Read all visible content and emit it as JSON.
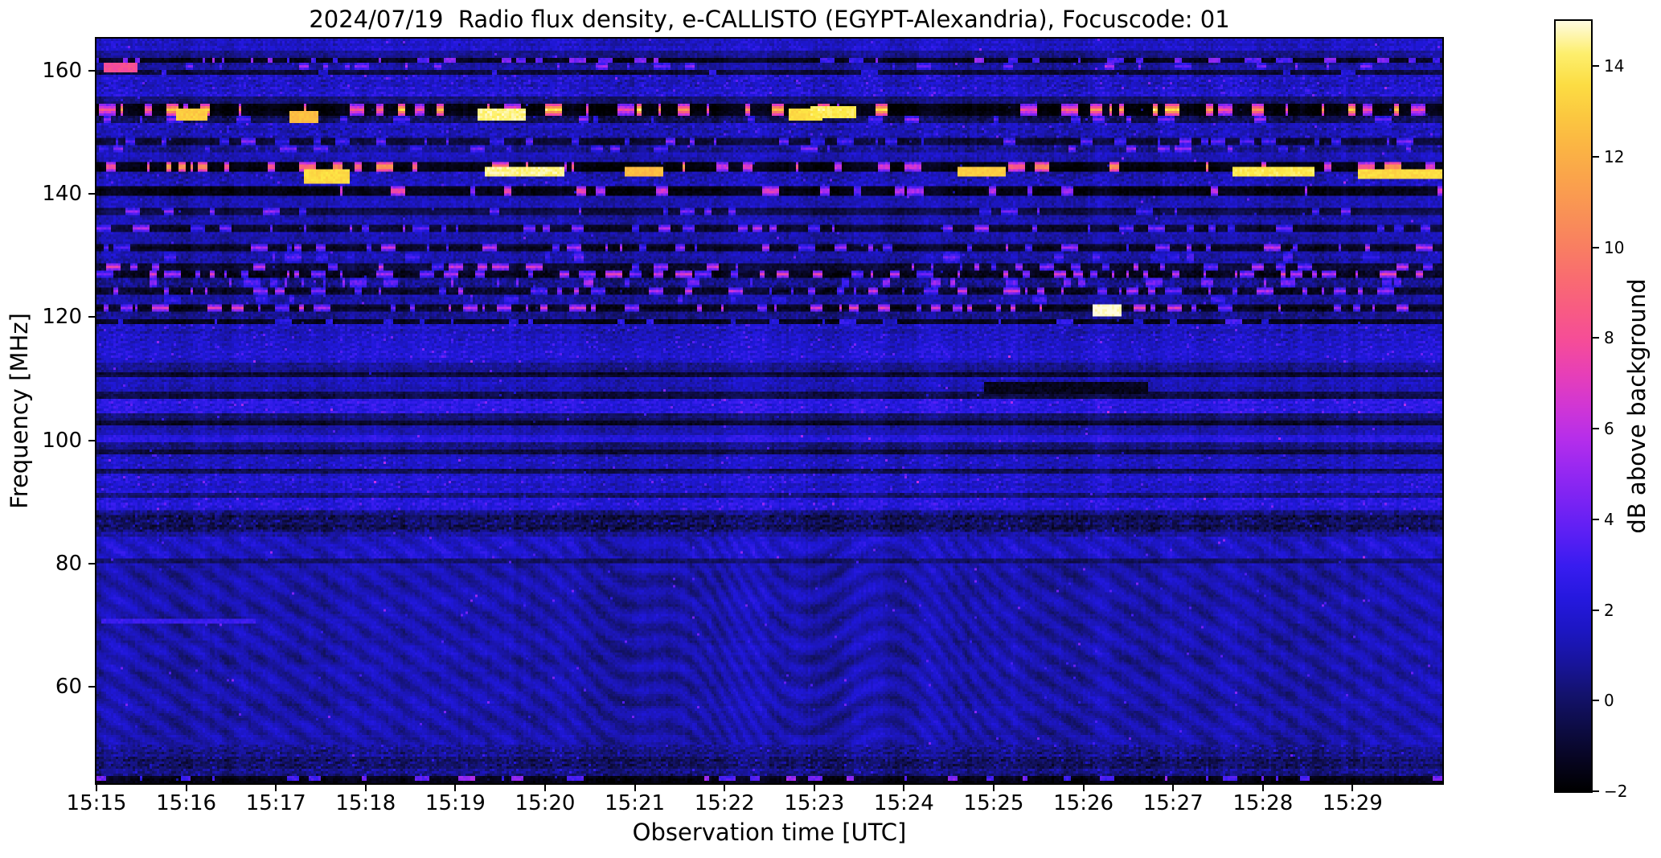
{
  "figure": {
    "background": "#ffffff",
    "observation": {
      "date": "2024/07/19",
      "instrument": "e-CALLISTO",
      "station": "EGYPT-Alexandria",
      "focuscode": "01"
    }
  },
  "chart_data": {
    "type": "heatmap",
    "title": "2024/07/19  Radio flux density, e-CALLISTO (EGYPT-Alexandria), Focuscode: 01",
    "xlabel": "Observation time [UTC]",
    "ylabel": "Frequency [MHz]",
    "x_ticks": [
      "15:15",
      "15:16",
      "15:17",
      "15:18",
      "15:19",
      "15:20",
      "15:21",
      "15:22",
      "15:23",
      "15:24",
      "15:25",
      "15:26",
      "15:27",
      "15:28",
      "15:29"
    ],
    "x_range_minutes": 15,
    "x_start": "15:15",
    "x_end": "15:30",
    "y_ticks": [
      160,
      140,
      120,
      100,
      80,
      60
    ],
    "y_range": [
      44.4,
      165.2
    ],
    "grid": false,
    "legend": "none",
    "colorbar": {
      "label": "dB above background",
      "ticks": [
        14,
        12,
        10,
        8,
        6,
        4,
        2,
        0,
        -2
      ],
      "vmin": -2,
      "vmax": 15,
      "orientation": "vertical",
      "position": "right",
      "colormap_stops": [
        [
          -2.0,
          "#000000"
        ],
        [
          -1.0,
          "#0a0830"
        ],
        [
          0.0,
          "#121264"
        ],
        [
          1.0,
          "#1a15a8"
        ],
        [
          2.0,
          "#1f17d8"
        ],
        [
          3.0,
          "#3a1df2"
        ],
        [
          4.0,
          "#6a20f5"
        ],
        [
          5.0,
          "#9428f2"
        ],
        [
          6.0,
          "#c030e8"
        ],
        [
          7.0,
          "#e33cc0"
        ],
        [
          8.0,
          "#f74e96"
        ],
        [
          9.0,
          "#fa6378"
        ],
        [
          10.0,
          "#f97f62"
        ],
        [
          11.0,
          "#fa9753"
        ],
        [
          12.0,
          "#fbaf45"
        ],
        [
          13.0,
          "#fccb40"
        ],
        [
          14.0,
          "#fdeb46"
        ],
        [
          14.6,
          "#fef59a"
        ],
        [
          15.0,
          "#fffbe0"
        ]
      ]
    },
    "render_seed": 20240719,
    "spectrogram_bands": [
      [
        165.2,
        163.2,
        1.6,
        0.9,
        0,
        0,
        ""
      ],
      [
        163.2,
        162.2,
        0.5,
        0.6,
        0,
        0,
        ""
      ],
      [
        162.2,
        161.1,
        -1.2,
        0.4,
        0.1,
        6.5,
        ""
      ],
      [
        161.1,
        160.2,
        0.9,
        0.7,
        0.05,
        5.5,
        ""
      ],
      [
        160.2,
        159.3,
        -0.9,
        0.5,
        0.02,
        4.0,
        ""
      ],
      [
        159.3,
        155.6,
        1.7,
        1.0,
        0,
        0,
        "s"
      ],
      [
        155.6,
        154.6,
        0.3,
        0.6,
        0,
        0,
        ""
      ],
      [
        154.6,
        152.6,
        -1.7,
        0.3,
        0.13,
        13.0,
        ""
      ],
      [
        152.6,
        151.6,
        -0.4,
        0.8,
        0.04,
        5.0,
        ""
      ],
      [
        151.6,
        149.0,
        1.4,
        0.9,
        0,
        0,
        "s"
      ],
      [
        149.0,
        148.0,
        -0.8,
        0.5,
        0.09,
        4.5,
        ""
      ],
      [
        148.0,
        146.6,
        0.8,
        0.9,
        0.07,
        5.0,
        ""
      ],
      [
        146.6,
        145.2,
        1.2,
        0.8,
        0,
        0,
        ""
      ],
      [
        145.2,
        143.6,
        -1.6,
        0.35,
        0.1,
        12.0,
        ""
      ],
      [
        143.6,
        141.3,
        1.3,
        0.9,
        0,
        0,
        "s"
      ],
      [
        141.3,
        139.9,
        -1.5,
        0.4,
        0.05,
        8.0,
        ""
      ],
      [
        139.9,
        137.6,
        1.2,
        0.8,
        0,
        0,
        ""
      ],
      [
        137.6,
        136.7,
        -0.6,
        0.5,
        0.05,
        5.0,
        ""
      ],
      [
        136.7,
        134.9,
        1.1,
        0.8,
        0,
        0,
        ""
      ],
      [
        134.9,
        134.0,
        -0.9,
        0.5,
        0.08,
        5.5,
        ""
      ],
      [
        134.0,
        131.7,
        1.2,
        0.8,
        0,
        0,
        ""
      ],
      [
        131.7,
        130.7,
        -1.1,
        0.5,
        0.11,
        6.0,
        ""
      ],
      [
        130.7,
        128.7,
        1.1,
        0.9,
        0.03,
        4.0,
        ""
      ],
      [
        128.7,
        127.7,
        -0.8,
        0.6,
        0.12,
        6.5,
        ""
      ],
      [
        127.7,
        126.4,
        -1.3,
        0.6,
        0.15,
        7.0,
        ""
      ],
      [
        126.4,
        124.9,
        0.6,
        1.0,
        0.08,
        6.0,
        ""
      ],
      [
        124.9,
        123.5,
        -1.0,
        0.7,
        0.1,
        6.0,
        ""
      ],
      [
        123.5,
        121.9,
        1.0,
        0.8,
        0.03,
        4.5,
        ""
      ],
      [
        121.9,
        120.7,
        -1.2,
        0.5,
        0.12,
        7.0,
        ""
      ],
      [
        120.7,
        119.7,
        0.7,
        0.8,
        0,
        0,
        ""
      ],
      [
        119.7,
        118.9,
        -1.3,
        0.4,
        0.04,
        4.0,
        ""
      ],
      [
        118.9,
        116.1,
        1.5,
        0.8,
        0,
        0,
        "s"
      ],
      [
        116.1,
        112.6,
        1.9,
        0.7,
        0,
        0,
        "s"
      ],
      [
        112.6,
        111.1,
        0.6,
        0.7,
        0,
        0,
        ""
      ],
      [
        111.1,
        110.3,
        -0.9,
        0.5,
        0,
        0,
        ""
      ],
      [
        110.3,
        108.1,
        1.4,
        0.8,
        0,
        0,
        ""
      ],
      [
        108.1,
        106.9,
        -0.4,
        0.6,
        0,
        0,
        ""
      ],
      [
        106.9,
        104.3,
        2.4,
        0.7,
        0,
        0,
        "s"
      ],
      [
        104.3,
        103.3,
        0.2,
        0.6,
        0,
        0,
        ""
      ],
      [
        103.3,
        102.5,
        -1.0,
        0.4,
        0,
        0,
        ""
      ],
      [
        102.5,
        100.7,
        1.2,
        0.7,
        0,
        0,
        ""
      ],
      [
        100.7,
        99.7,
        2.3,
        0.6,
        0,
        0,
        ""
      ],
      [
        99.7,
        98.5,
        0.3,
        0.7,
        0,
        0,
        ""
      ],
      [
        98.5,
        97.7,
        -0.8,
        0.5,
        0,
        0,
        ""
      ],
      [
        97.7,
        95.5,
        1.5,
        0.7,
        0,
        0,
        "s"
      ],
      [
        95.5,
        94.7,
        -0.3,
        0.6,
        0,
        0,
        ""
      ],
      [
        94.7,
        91.6,
        1.8,
        0.8,
        0,
        0,
        "s"
      ],
      [
        91.6,
        90.8,
        0.2,
        0.7,
        0,
        0,
        ""
      ],
      [
        90.8,
        88.9,
        2.3,
        0.8,
        0,
        0,
        "s"
      ],
      [
        88.9,
        87.9,
        0.5,
        0.9,
        0,
        0,
        ""
      ],
      [
        87.9,
        85.3,
        -0.2,
        1.0,
        0,
        0,
        "s"
      ],
      [
        85.3,
        84.3,
        0.8,
        0.8,
        0,
        0,
        ""
      ],
      [
        84.3,
        80.7,
        1.5,
        0.6,
        0,
        0,
        "r"
      ],
      [
        80.7,
        80.1,
        0.1,
        0.5,
        0,
        0,
        ""
      ],
      [
        80.1,
        50.6,
        1.1,
        0.45,
        0,
        0,
        "r"
      ],
      [
        50.6,
        48.7,
        0.6,
        0.8,
        0,
        0,
        "s"
      ],
      [
        48.7,
        46.9,
        -0.1,
        0.9,
        0,
        0,
        "s"
      ],
      [
        46.9,
        45.5,
        0.5,
        0.8,
        0,
        0,
        "s"
      ],
      [
        45.5,
        44.8,
        -1.4,
        0.4,
        0.1,
        6.5,
        ""
      ],
      [
        44.8,
        44.4,
        -1.6,
        0.3,
        0,
        0,
        ""
      ]
    ],
    "hotspots": [
      [
        0.25,
        160.7,
        8.0,
        0.35,
        1.2
      ],
      [
        1.05,
        153.0,
        13.0,
        0.3,
        1.5
      ],
      [
        2.3,
        152.8,
        12.5,
        0.3,
        1.5
      ],
      [
        2.55,
        143.1,
        13.5,
        0.5,
        2.0
      ],
      [
        4.5,
        152.9,
        14.5,
        0.5,
        1.5
      ],
      [
        4.75,
        143.9,
        14.5,
        0.85,
        1.3
      ],
      [
        6.1,
        143.9,
        12.5,
        0.4,
        1.2
      ],
      [
        7.9,
        152.9,
        13.5,
        0.35,
        1.5
      ],
      [
        8.2,
        153.3,
        14.0,
        0.5,
        1.5
      ],
      [
        9.85,
        143.8,
        13.0,
        0.5,
        1.2
      ],
      [
        11.25,
        121.2,
        15.0,
        0.3,
        1.5
      ],
      [
        13.1,
        143.8,
        14.0,
        0.9,
        1.3
      ],
      [
        14.55,
        143.6,
        13.5,
        1.0,
        1.2
      ],
      [
        0.9,
        70.9,
        2.9,
        1.7,
        0.6
      ],
      [
        10.8,
        108.8,
        -1.4,
        1.8,
        1.6
      ]
    ],
    "ripple": {
      "row_freq": 0.62,
      "col_freq": 0.42,
      "amp": 0.55,
      "bend_center_min": 8.35,
      "bend_width_min": 1.35,
      "bend_amp": 18,
      "bend_osc": 2.4,
      "bend2_center_min": 6.2,
      "bend2_width_min": 0.9,
      "bend2_amp": 7
    }
  }
}
